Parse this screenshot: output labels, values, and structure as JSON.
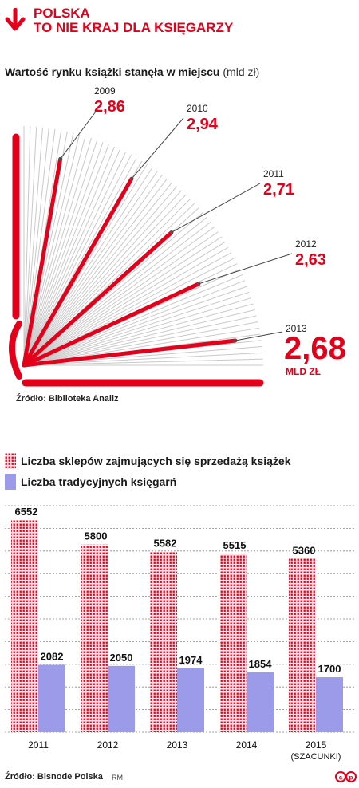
{
  "header": {
    "line1": "POLSKA",
    "line2": "TO NIE KRAJ DLA KSIĘGARZY"
  },
  "colors": {
    "red": "#e3001b",
    "purple": "#9b9bea",
    "dotred": "#e3001b",
    "grey": "#c9c9c9",
    "text": "#1a1a1a"
  },
  "fan_chart": {
    "title": "Wartość rynku książki stanęła w miejscu",
    "unit": "(mld zł)",
    "source": "Źródło: Biblioteka Analiz",
    "total_label": "MLD ZŁ"
  },
  "bar_chart": {
    "legend": {
      "shops": "Liczba sklepów zajmujących się sprzedażą książek",
      "bookstores": "Liczba tradycyjnych księgarń"
    },
    "source": "Źródło: Bisnode Polska",
    "credit": "RM"
  },
  "chart_data": [
    {
      "type": "fan",
      "title": "Wartość rynku książki stanęła w miejscu",
      "unit": "(mld zł)",
      "categories": [
        "2009",
        "2010",
        "2011",
        "2012",
        "2013"
      ],
      "values": [
        2.86,
        2.94,
        2.71,
        2.63,
        2.68
      ],
      "value_labels": [
        "2,86",
        "2,94",
        "2,71",
        "2,63",
        "2,68"
      ]
    },
    {
      "type": "bar",
      "categories": [
        "2011",
        "2012",
        "2013",
        "2014",
        "2015"
      ],
      "category_notes": [
        "",
        "",
        "",
        "",
        "(SZACUNKI)"
      ],
      "series": [
        {
          "name": "Liczba sklepów zajmujących się sprzedażą książek",
          "values": [
            6552,
            5800,
            5582,
            5515,
            5360
          ]
        },
        {
          "name": "Liczba tradycyjnych księgarń",
          "values": [
            2082,
            2050,
            1974,
            1854,
            1700
          ]
        }
      ],
      "ylim": [
        0,
        7000
      ],
      "grid": true
    }
  ]
}
